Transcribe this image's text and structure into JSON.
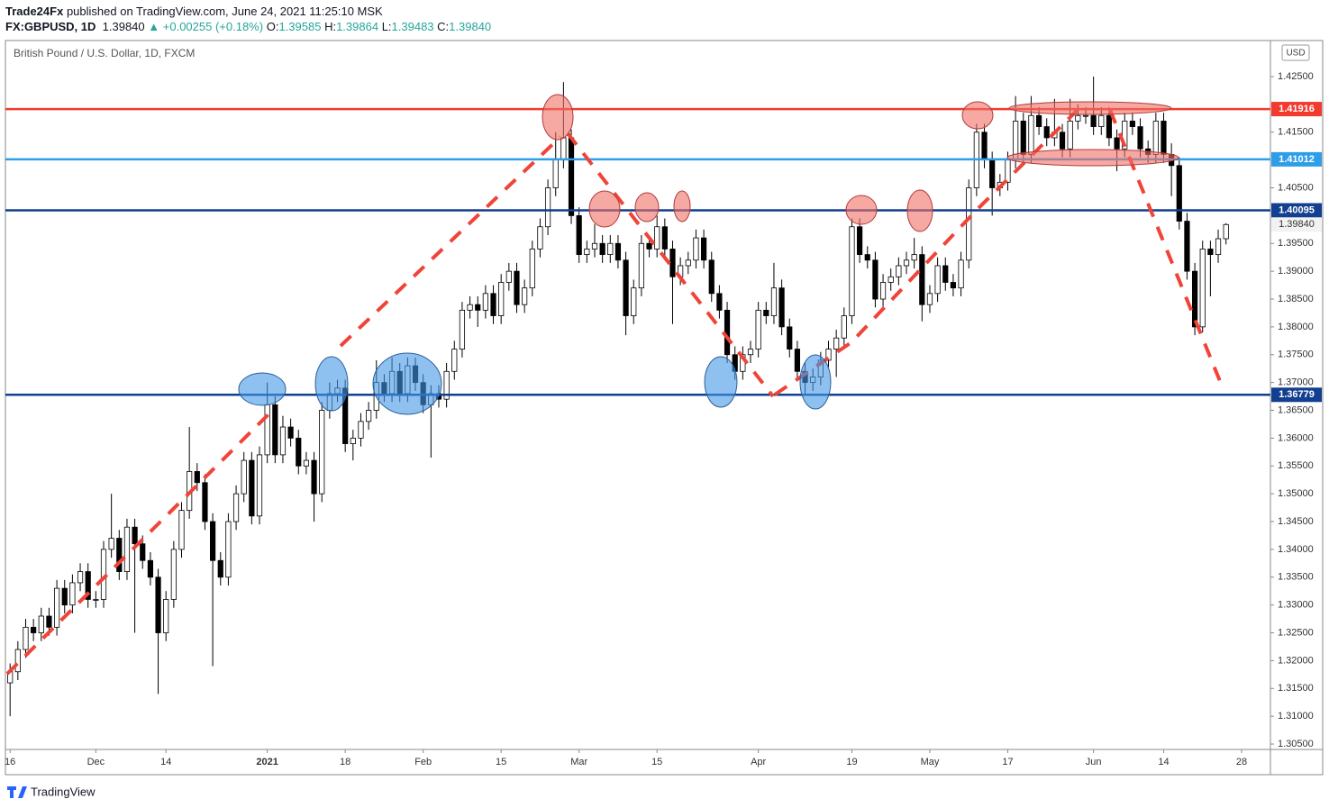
{
  "header": {
    "publisher": "Trade24Fx",
    "published": "published on TradingView.com, June 24, 2021 11:25:10 MSK",
    "symbol": "FX:GBPUSD, 1D",
    "last": "1.39840",
    "change": "+0.00255 (+0.18%)",
    "fields": [
      {
        "label": "O:",
        "value": "1.39585"
      },
      {
        "label": "H:",
        "value": "1.39864"
      },
      {
        "label": "L:",
        "value": "1.39483"
      },
      {
        "label": "C:",
        "value": "1.39840"
      }
    ]
  },
  "footer": {
    "brand": "TradingView"
  },
  "chart_data": {
    "type": "candlestick",
    "title": "British Pound / U.S. Dollar, 1D, FXCM",
    "currency": "USD",
    "up_color": "#ffffff",
    "down_color": "#000000",
    "grid": true,
    "open": [
      1.316,
      1.318,
      1.322,
      1.326,
      1.325,
      1.328,
      1.326,
      1.333,
      1.33,
      1.334,
      1.336,
      1.331,
      1.331,
      1.34,
      1.342,
      1.336,
      1.344,
      1.341,
      1.338,
      1.335,
      1.325,
      1.331,
      1.34,
      1.347,
      1.354,
      1.352,
      1.345,
      1.338,
      1.335,
      1.345,
      1.35,
      1.356,
      1.346,
      1.357,
      1.366,
      1.357,
      1.362,
      1.36,
      1.355,
      1.356,
      1.35,
      1.365,
      1.368,
      1.369,
      1.359,
      1.36,
      1.363,
      1.365,
      1.37,
      1.368,
      1.372,
      1.368,
      1.373,
      1.37,
      1.366,
      1.368,
      1.367,
      1.372,
      1.376,
      1.383,
      1.384,
      1.383,
      1.386,
      1.382,
      1.388,
      1.39,
      1.384,
      1.387,
      1.394,
      1.398,
      1.405,
      1.41,
      1.414,
      1.4,
      1.393,
      1.394,
      1.395,
      1.393,
      1.395,
      1.392,
      1.382,
      1.387,
      1.395,
      1.394,
      1.398,
      1.394,
      1.389,
      1.391,
      1.392,
      1.396,
      1.392,
      1.386,
      1.383,
      1.375,
      1.372,
      1.375,
      1.376,
      1.383,
      1.382,
      1.387,
      1.38,
      1.376,
      1.372,
      1.37,
      1.371,
      1.374,
      1.376,
      1.378,
      1.382,
      1.398,
      1.393,
      1.392,
      1.385,
      1.388,
      1.389,
      1.391,
      1.392,
      1.393,
      1.384,
      1.386,
      1.391,
      1.388,
      1.387,
      1.392,
      1.405,
      1.415,
      1.41,
      1.405,
      1.406,
      1.41,
      1.417,
      1.411,
      1.418,
      1.416,
      1.414,
      1.415,
      1.412,
      1.417,
      1.418,
      1.418,
      1.416,
      1.418,
      1.414,
      1.412,
      1.417,
      1.416,
      1.412,
      1.411,
      1.417,
      1.411,
      1.409,
      1.399,
      1.39,
      1.38,
      1.394,
      1.393,
      1.39585
    ],
    "high": [
      1.3195,
      1.3235,
      1.3275,
      1.3275,
      1.3295,
      1.3295,
      1.3345,
      1.3345,
      1.3355,
      1.3375,
      1.3375,
      1.3325,
      1.3415,
      1.35,
      1.3435,
      1.3455,
      1.3455,
      1.3425,
      1.3395,
      1.3365,
      1.3325,
      1.3415,
      1.3485,
      1.362,
      1.3555,
      1.3535,
      1.3465,
      1.3395,
      1.3465,
      1.3515,
      1.3575,
      1.3575,
      1.3585,
      1.37,
      1.3675,
      1.364,
      1.3635,
      1.3615,
      1.3575,
      1.3575,
      1.3665,
      1.37,
      1.3705,
      1.3705,
      1.3615,
      1.3645,
      1.3665,
      1.374,
      1.3715,
      1.3745,
      1.3735,
      1.3745,
      1.3745,
      1.3715,
      1.3695,
      1.3695,
      1.3735,
      1.3775,
      1.3845,
      1.3855,
      1.3855,
      1.3875,
      1.3875,
      1.3895,
      1.3915,
      1.3915,
      1.3885,
      1.3955,
      1.3995,
      1.4065,
      1.415,
      1.424,
      1.4155,
      1.4015,
      1.3955,
      1.3985,
      1.3965,
      1.3965,
      1.3965,
      1.3935,
      1.3885,
      1.3965,
      1.3965,
      1.4,
      1.3995,
      1.3955,
      1.3925,
      1.3935,
      1.3975,
      1.3975,
      1.3935,
      1.3875,
      1.3845,
      1.3765,
      1.3765,
      1.3775,
      1.3845,
      1.3845,
      1.3915,
      1.3885,
      1.3815,
      1.3775,
      1.3735,
      1.3725,
      1.3755,
      1.3775,
      1.3795,
      1.3835,
      1.3995,
      1.3995,
      1.3945,
      1.3935,
      1.3895,
      1.3905,
      1.3925,
      1.3935,
      1.396,
      1.3945,
      1.3875,
      1.3925,
      1.3925,
      1.3895,
      1.3935,
      1.4065,
      1.4165,
      1.4165,
      1.4115,
      1.4075,
      1.4115,
      1.4215,
      1.4185,
      1.4215,
      1.4195,
      1.4175,
      1.421,
      1.4165,
      1.421,
      1.42,
      1.4195,
      1.425,
      1.4195,
      1.4195,
      1.4155,
      1.4185,
      1.4185,
      1.4175,
      1.4135,
      1.4185,
      1.4185,
      1.413,
      1.4105,
      1.4005,
      1.3915,
      1.3955,
      1.3955,
      1.3975,
      1.39864
    ],
    "low": [
      1.31,
      1.3165,
      1.3205,
      1.3235,
      1.3235,
      1.3245,
      1.3245,
      1.3285,
      1.3285,
      1.3325,
      1.3295,
      1.3295,
      1.3295,
      1.3385,
      1.3345,
      1.3345,
      1.325,
      1.3365,
      1.3335,
      1.314,
      1.3235,
      1.3295,
      1.3385,
      1.3455,
      1.3505,
      1.3435,
      1.319,
      1.3335,
      1.3335,
      1.3435,
      1.3485,
      1.3445,
      1.3445,
      1.3555,
      1.3555,
      1.3555,
      1.3585,
      1.3535,
      1.3535,
      1.345,
      1.3485,
      1.3635,
      1.3665,
      1.3575,
      1.356,
      1.3585,
      1.3615,
      1.3635,
      1.3665,
      1.3665,
      1.3665,
      1.3665,
      1.3685,
      1.3645,
      1.3565,
      1.3655,
      1.3655,
      1.3705,
      1.3745,
      1.3815,
      1.38,
      1.3815,
      1.3805,
      1.3805,
      1.3865,
      1.3825,
      1.3825,
      1.3855,
      1.3925,
      1.3965,
      1.4035,
      1.4085,
      1.3985,
      1.3915,
      1.3915,
      1.3925,
      1.3915,
      1.3915,
      1.3905,
      1.3785,
      1.3805,
      1.3855,
      1.3925,
      1.3925,
      1.3925,
      1.3805,
      1.3875,
      1.3895,
      1.3905,
      1.3905,
      1.3845,
      1.3815,
      1.3735,
      1.3705,
      1.3705,
      1.3735,
      1.3745,
      1.3805,
      1.3805,
      1.3785,
      1.3745,
      1.3705,
      1.368,
      1.3685,
      1.3695,
      1.3725,
      1.371,
      1.3765,
      1.3805,
      1.3915,
      1.3905,
      1.3835,
      1.3835,
      1.3865,
      1.3875,
      1.3895,
      1.3905,
      1.381,
      1.3825,
      1.3845,
      1.3865,
      1.3855,
      1.3855,
      1.3905,
      1.4035,
      1.4085,
      1.4,
      1.4035,
      1.4045,
      1.4085,
      1.4095,
      1.4095,
      1.4145,
      1.4125,
      1.4125,
      1.4105,
      1.4105,
      1.4155,
      1.4165,
      1.4145,
      1.4145,
      1.4125,
      1.408,
      1.4105,
      1.4145,
      1.4105,
      1.4095,
      1.4095,
      1.4095,
      1.4035,
      1.3975,
      1.3885,
      1.3785,
      1.379,
      1.3855,
      1.3915,
      1.39483
    ],
    "close": [
      1.318,
      1.322,
      1.326,
      1.325,
      1.328,
      1.326,
      1.333,
      1.33,
      1.334,
      1.336,
      1.331,
      1.331,
      1.34,
      1.342,
      1.336,
      1.344,
      1.341,
      1.338,
      1.335,
      1.325,
      1.331,
      1.34,
      1.347,
      1.354,
      1.352,
      1.345,
      1.338,
      1.335,
      1.345,
      1.35,
      1.356,
      1.346,
      1.357,
      1.366,
      1.357,
      1.362,
      1.36,
      1.355,
      1.356,
      1.35,
      1.365,
      1.368,
      1.369,
      1.359,
      1.36,
      1.363,
      1.365,
      1.37,
      1.368,
      1.372,
      1.368,
      1.373,
      1.37,
      1.366,
      1.368,
      1.367,
      1.372,
      1.376,
      1.383,
      1.384,
      1.383,
      1.386,
      1.382,
      1.388,
      1.39,
      1.384,
      1.387,
      1.394,
      1.398,
      1.405,
      1.41,
      1.414,
      1.4,
      1.393,
      1.394,
      1.395,
      1.393,
      1.395,
      1.392,
      1.382,
      1.387,
      1.395,
      1.394,
      1.398,
      1.394,
      1.389,
      1.391,
      1.392,
      1.396,
      1.392,
      1.386,
      1.383,
      1.375,
      1.372,
      1.375,
      1.376,
      1.383,
      1.382,
      1.387,
      1.38,
      1.376,
      1.372,
      1.37,
      1.371,
      1.374,
      1.376,
      1.378,
      1.382,
      1.398,
      1.393,
      1.392,
      1.385,
      1.388,
      1.389,
      1.391,
      1.392,
      1.393,
      1.384,
      1.386,
      1.391,
      1.388,
      1.387,
      1.392,
      1.405,
      1.415,
      1.41,
      1.405,
      1.406,
      1.41,
      1.417,
      1.411,
      1.418,
      1.416,
      1.414,
      1.415,
      1.412,
      1.417,
      1.418,
      1.418,
      1.416,
      1.418,
      1.414,
      1.412,
      1.417,
      1.416,
      1.412,
      1.411,
      1.417,
      1.411,
      1.409,
      1.399,
      1.39,
      1.38,
      1.394,
      1.393,
      1.39585,
      1.3984
    ],
    "xlim": [
      -0.6,
      161.7
    ],
    "xticks": [
      {
        "value": 0,
        "label": "16"
      },
      {
        "value": 11,
        "label": "Dec"
      },
      {
        "value": 20,
        "label": "14"
      },
      {
        "value": 33,
        "label": "2021"
      },
      {
        "value": 43,
        "label": "18"
      },
      {
        "value": 53,
        "label": "Feb"
      },
      {
        "value": 63,
        "label": "15"
      },
      {
        "value": 73,
        "label": "Mar"
      },
      {
        "value": 83,
        "label": "15"
      },
      {
        "value": 96,
        "label": "Apr"
      },
      {
        "value": 108,
        "label": "19"
      },
      {
        "value": 118,
        "label": "May"
      },
      {
        "value": 128,
        "label": "17"
      },
      {
        "value": 139,
        "label": "Jun"
      },
      {
        "value": 148,
        "label": "14"
      },
      {
        "value": 158,
        "label": "28"
      }
    ],
    "ylim": [
      1.30403,
      1.43148
    ],
    "yticks": [
      {
        "value": 1.305,
        "label": "1.30500"
      },
      {
        "value": 1.31,
        "label": "1.31000"
      },
      {
        "value": 1.315,
        "label": "1.31500"
      },
      {
        "value": 1.32,
        "label": "1.32000"
      },
      {
        "value": 1.325,
        "label": "1.32500"
      },
      {
        "value": 1.33,
        "label": "1.33000"
      },
      {
        "value": 1.335,
        "label": "1.33500"
      },
      {
        "value": 1.34,
        "label": "1.34000"
      },
      {
        "value": 1.345,
        "label": "1.34500"
      },
      {
        "value": 1.35,
        "label": "1.35000"
      },
      {
        "value": 1.355,
        "label": "1.35500"
      },
      {
        "value": 1.36,
        "label": "1.36000"
      },
      {
        "value": 1.365,
        "label": "1.36500"
      },
      {
        "value": 1.37,
        "label": "1.37000"
      },
      {
        "value": 1.375,
        "label": "1.37500"
      },
      {
        "value": 1.38,
        "label": "1.38000"
      },
      {
        "value": 1.385,
        "label": "1.38500"
      },
      {
        "value": 1.39,
        "label": "1.39000"
      },
      {
        "value": 1.395,
        "label": "1.39500"
      },
      {
        "value": 1.405,
        "label": "1.40500"
      },
      {
        "value": 1.415,
        "label": "1.41500"
      },
      {
        "value": 1.425,
        "label": "1.42500"
      }
    ],
    "levels": [
      {
        "value": 1.41916,
        "color": "#f23a2e"
      },
      {
        "value": 1.41012,
        "color": "#2f9ee8"
      },
      {
        "value": 1.40095,
        "color": "#123f8f"
      },
      {
        "value": 1.36779,
        "color": "#123f8f"
      }
    ],
    "last_price": {
      "value": 1.3984,
      "label": "1.39840"
    }
  }
}
